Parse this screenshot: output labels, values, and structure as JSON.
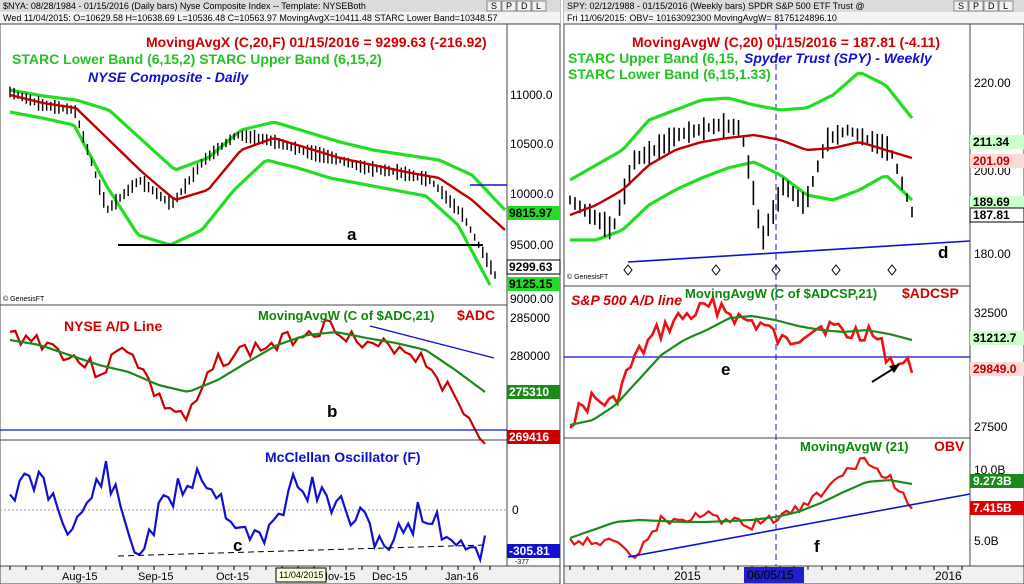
{
  "left": {
    "header": "$NYA: 08/28/1984 - 01/15/2016 (Daily bars)   Nyse Composite Index  --  Template: NYSEBoth",
    "ohlc": "Wed 11/04/2015:  O=10629.58  H=10638.69  L=10536.48  C=10563.97  MovingAvgX=10411.48  STARC Lower Band=10348.57",
    "ma_label": "MovingAvgX (C,20,F)  01/15/2016 = 9299.63 (-216.92)",
    "starc_label": "STARC Lower Band (6,15,2)  STARC Upper Band (6,15,2)",
    "title": "NYSE Composite - Daily",
    "ad_title": "NYSE A/D Line",
    "ad_ma_label": "MovingAvgW (C of $ADC,21)",
    "ad_symbol": "$ADC",
    "osc_title": "McClellan Oscillator (F)",
    "genesis": "© GenesisFT",
    "annotations": [
      "a",
      "b",
      "c"
    ],
    "price_axis": [
      "11000.0",
      "10500.0",
      "10000.0",
      "9500.00",
      "9000.00"
    ],
    "price_tags": {
      "upper": "9815.97",
      "close": "9299.63",
      "lower": "9125.15"
    },
    "ad_axis": [
      "285000",
      "280000"
    ],
    "ad_tags": {
      "ma": "275310",
      "line": "269416"
    },
    "osc_axis": [
      "0"
    ],
    "osc_tag": "-305.81",
    "osc_marker": "-377",
    "x_axis": [
      "Aug-15",
      "Sep-15",
      "Oct-15",
      "Nov-15",
      "Dec-15",
      "Jan-16"
    ],
    "x_cursor": "11/04/2015",
    "tabs": [
      "S",
      "P",
      "D",
      "L"
    ]
  },
  "right": {
    "header": "SPY: 02/12/1988 - 01/15/2016 (Weekly bars)   SPDR S&P 500 ETF Trust @",
    "ohlc": "Fri  11/06/2015:  OBV= 10163092300  MovingAvgW= 8175124896.10",
    "ma_label": "MovingAvgW (C,20)  01/15/2016 = 187.81 (-4.11)",
    "starc_upper": "STARC Upper Band (6,15,",
    "starc_lower": "STARC Lower Band (6,15,1.33)",
    "title": "Spyder Trust (SPY) - Weekly",
    "ad_title": "S&P 500 A/D line",
    "ad_ma_label": "MovingAvgW (C of $ADCSP,21)",
    "ad_symbol": "$ADCSP",
    "obv_ma_label": "MovingAvgW (21)",
    "obv_title": "OBV",
    "genesis": "© GenesisFT",
    "annotations": [
      "d",
      "e",
      "f"
    ],
    "price_axis": [
      "220.00",
      "200.00",
      "180.00"
    ],
    "price_tags": {
      "upper": "211.34",
      "ma": "201.09",
      "lower": "189.69",
      "close": "187.81"
    },
    "ad_axis": [
      "32500",
      "27500"
    ],
    "ad_tags": {
      "ma": "31212.7",
      "line": "29849.0"
    },
    "obv_axis": [
      "10.0B",
      "5.0B"
    ],
    "obv_tags": {
      "ma": "9.273B",
      "line": "7.415B"
    },
    "x_axis": [
      "2015",
      "2016"
    ],
    "x_cursor": "06/05/15",
    "tabs": [
      "S",
      "P",
      "D",
      "L"
    ]
  },
  "chart_data": [
    {
      "type": "line",
      "title": "NYSE Composite - Daily",
      "x": [
        "Aug-15",
        "Sep-15",
        "Oct-15",
        "Nov-15",
        "Dec-15",
        "Jan-16"
      ],
      "series": [
        {
          "name": "MovingAvgX (C,20,F)",
          "values": [
            10800,
            10200,
            10050,
            10400,
            10300,
            9900
          ]
        },
        {
          "name": "STARC Upper Band (6,15,2)",
          "values": [
            11100,
            10450,
            10300,
            10650,
            10500,
            9815.97
          ]
        },
        {
          "name": "STARC Lower Band (6,15,2)",
          "values": [
            10500,
            9600,
            9700,
            10150,
            10000,
            9125.15
          ]
        }
      ],
      "ylim": [
        8900,
        11200
      ]
    },
    {
      "type": "line",
      "title": "NYSE A/D Line",
      "x": [
        "Aug-15",
        "Sep-15",
        "Oct-15",
        "Nov-15",
        "Dec-15",
        "Jan-16"
      ],
      "series": [
        {
          "name": "NYSE A/D Line",
          "values": [
            283000,
            277000,
            279000,
            285000,
            282000,
            269416
          ]
        },
        {
          "name": "MovingAvgW (C of $ADC,21)",
          "values": [
            282500,
            278000,
            279000,
            283500,
            282000,
            275310
          ]
        }
      ]
    },
    {
      "type": "line",
      "title": "McClellan Oscillator (F)",
      "x": [
        "Aug-15",
        "Sep-15",
        "Oct-15",
        "Nov-15",
        "Dec-15",
        "Jan-16"
      ],
      "series": [
        {
          "name": "McClellan Oscillator (F)",
          "values": [
            150,
            -300,
            320,
            50,
            -100,
            -305.81
          ]
        }
      ]
    },
    {
      "type": "line",
      "title": "Spyder Trust (SPY) - Weekly",
      "x": [
        "2015",
        "2016"
      ],
      "series": [
        {
          "name": "MovingAvgW (C,20)",
          "values": [
            195,
            201.09
          ]
        },
        {
          "name": "STARC Upper Band (6,15,",
          "values": [
            205,
            211.34
          ]
        },
        {
          "name": "STARC Lower Band (6,15,1.33)",
          "values": [
            185,
            189.69
          ]
        }
      ],
      "ylim": [
        175,
        225
      ]
    },
    {
      "type": "line",
      "title": "S&P 500 A/D line",
      "x": [
        "2015",
        "2016"
      ],
      "series": [
        {
          "name": "S&P 500 A/D line",
          "values": [
            31500,
            29849.0
          ]
        },
        {
          "name": "MovingAvgW (C of $ADCSP,21)",
          "values": [
            31200,
            31212.7
          ]
        }
      ]
    },
    {
      "type": "line",
      "title": "OBV",
      "x": [
        "2015",
        "2016"
      ],
      "series": [
        {
          "name": "OBV",
          "values": [
            6.3,
            7.415
          ]
        },
        {
          "name": "MovingAvgW (21)",
          "values": [
            6.2,
            9.273
          ]
        }
      ]
    }
  ]
}
